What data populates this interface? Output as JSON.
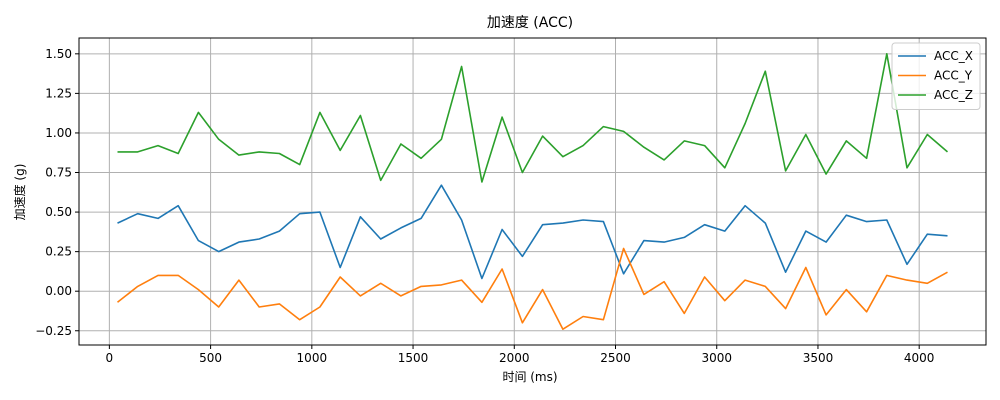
{
  "chart_data": {
    "type": "line",
    "title": "加速度 (ACC)",
    "xlabel": "时间 (ms)",
    "ylabel": "加速度 (g)",
    "xlim": [
      -150,
      4330
    ],
    "ylim": [
      -0.34,
      1.6
    ],
    "xticks": [
      0,
      500,
      1000,
      1500,
      2000,
      2500,
      3000,
      3500,
      4000
    ],
    "xtick_labels": [
      "0",
      "500",
      "1000",
      "1500",
      "2000",
      "2500",
      "3000",
      "3500",
      "4000"
    ],
    "yticks": [
      -0.25,
      0,
      0.25,
      0.5,
      0.75,
      1.0,
      1.25,
      1.5
    ],
    "ytick_labels": [
      "−0.25",
      "0.00",
      "0.25",
      "0.50",
      "0.75",
      "1.00",
      "1.25",
      "1.50"
    ],
    "grid": true,
    "legend_position": "top-right",
    "x": [
      40,
      140,
      240,
      340,
      440,
      540,
      640,
      740,
      840,
      940,
      1040,
      1140,
      1240,
      1340,
      1440,
      1540,
      1640,
      1740,
      1840,
      1940,
      2040,
      2140,
      2240,
      2340,
      2440,
      2540,
      2640,
      2740,
      2840,
      2940,
      3040,
      3140,
      3240,
      3340,
      3440,
      3540,
      3640,
      3740,
      3840,
      3940,
      4040,
      4140
    ],
    "series": [
      {
        "name": "ACC_X",
        "color": "#1f77b4",
        "values": [
          0.43,
          0.49,
          0.46,
          0.54,
          0.32,
          0.25,
          0.31,
          0.33,
          0.38,
          0.49,
          0.5,
          0.15,
          0.47,
          0.33,
          0.4,
          0.46,
          0.67,
          0.45,
          0.08,
          0.39,
          0.22,
          0.42,
          0.43,
          0.45,
          0.44,
          0.11,
          0.32,
          0.31,
          0.34,
          0.42,
          0.38,
          0.54,
          0.43,
          0.12,
          0.38,
          0.31,
          0.48,
          0.44,
          0.45,
          0.17,
          0.36,
          0.35
        ]
      },
      {
        "name": "ACC_Y",
        "color": "#ff7f0e",
        "values": [
          -0.07,
          0.03,
          0.1,
          0.1,
          0.01,
          -0.1,
          0.07,
          -0.1,
          -0.08,
          -0.18,
          -0.1,
          0.09,
          -0.03,
          0.05,
          -0.03,
          0.03,
          0.04,
          0.07,
          -0.07,
          0.14,
          -0.2,
          0.01,
          -0.24,
          -0.16,
          -0.18,
          0.27,
          -0.02,
          0.06,
          -0.14,
          0.09,
          -0.06,
          0.07,
          0.03,
          -0.11,
          0.15,
          -0.15,
          0.01,
          -0.13,
          0.1,
          0.07,
          0.05,
          0.12
        ]
      },
      {
        "name": "ACC_Z",
        "color": "#2ca02c",
        "values": [
          0.88,
          0.88,
          0.92,
          0.87,
          1.13,
          0.96,
          0.86,
          0.88,
          0.87,
          0.8,
          1.13,
          0.89,
          1.11,
          0.7,
          0.93,
          0.84,
          0.96,
          1.42,
          0.69,
          1.1,
          0.75,
          0.98,
          0.85,
          0.92,
          1.04,
          1.01,
          0.91,
          0.83,
          0.95,
          0.92,
          0.78,
          1.06,
          1.39,
          0.76,
          0.99,
          0.74,
          0.95,
          0.84,
          1.5,
          0.78,
          0.99,
          0.88
        ]
      }
    ]
  }
}
